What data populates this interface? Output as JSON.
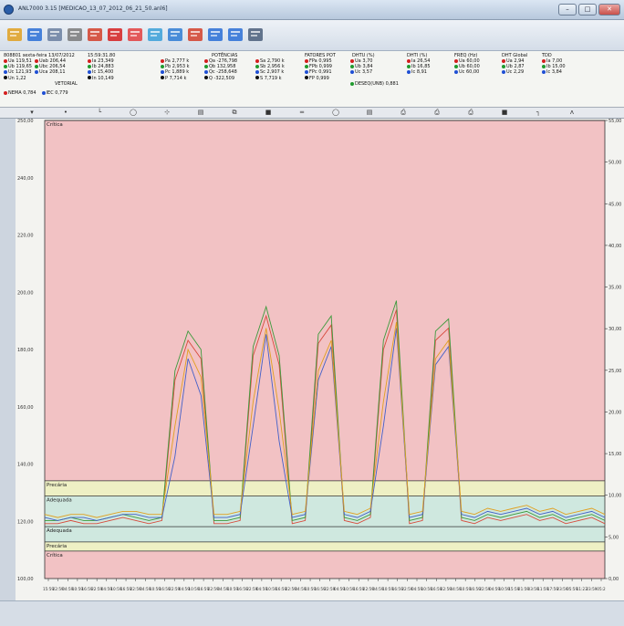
{
  "window": {
    "title": "ANL7000 3.15 [MEDICAO_13_07_2012_06_21_50.anl6]",
    "minimize_label": "–",
    "maximize_label": "□",
    "close_label": "✕"
  },
  "toolbar": {
    "buttons": [
      {
        "name": "open-icon",
        "color": "#e0a020"
      },
      {
        "name": "line-chart-icon",
        "color": "#2a6fd6"
      },
      {
        "name": "list-icon",
        "color": "#6a7fa0"
      },
      {
        "name": "table-icon",
        "color": "#7a7a7a"
      },
      {
        "name": "bar-chart-icon",
        "color": "#d43f2a"
      },
      {
        "name": "phasor-icon",
        "color": "#d62020"
      },
      {
        "name": "report-icon",
        "color": "#e34040"
      },
      {
        "name": "image-icon",
        "color": "#3aa0d8"
      },
      {
        "name": "energy-icon",
        "color": "#2f7cd3"
      },
      {
        "name": "harmonics-icon",
        "color": "#d43f2a"
      },
      {
        "name": "wave-icon",
        "color": "#2a6fd6"
      },
      {
        "name": "circle-icon",
        "color": "#2a6fd6"
      },
      {
        "name": "save-icon",
        "color": "#4a5e7a"
      }
    ]
  },
  "readouts": {
    "header": {
      "id": "808801",
      "day": "sexta-feira",
      "date": "13/07/2012",
      "time": "15:59:31.80"
    },
    "vectorial_label": "VETORIAL",
    "sections": {
      "potencias": "POTÊNCIAS",
      "fatores": "FATORES POT",
      "dhtu": "DHTU (%)",
      "dhti": "DHTI (%)",
      "freq": "FREQ (Hz)",
      "dht_global": "DHT Global",
      "tdd": "TDD"
    },
    "voltage": [
      {
        "label": "Ua",
        "value": "119,51",
        "color": "#d41e1e"
      },
      {
        "label": "Ub",
        "value": "119,65",
        "color": "#1f9a2e"
      },
      {
        "label": "Uc",
        "value": "121,93",
        "color": "#1e4fd4"
      },
      {
        "label": "Un",
        "value": "1,22",
        "color": "#111111"
      }
    ],
    "line_voltage": [
      {
        "label": "Uab",
        "value": "206,44",
        "color": "#d41e1e"
      },
      {
        "label": "Ubc",
        "value": "206,54",
        "color": "#1f9a2e"
      },
      {
        "label": "Uca",
        "value": "208,11",
        "color": "#1e4fd4"
      }
    ],
    "current": [
      {
        "label": "Ia",
        "value": "23,349",
        "color": "#d41e1e"
      },
      {
        "label": "Ib",
        "value": "24,883",
        "color": "#1f9a2e"
      },
      {
        "label": "Ic",
        "value": "15,400",
        "color": "#1e4fd4"
      },
      {
        "label": "In",
        "value": "10,149",
        "color": "#111111"
      }
    ],
    "active": [
      {
        "label": "Pa",
        "value": "2,777 k",
        "color": "#d41e1e"
      },
      {
        "label": "Pb",
        "value": "2,953 k",
        "color": "#1f9a2e"
      },
      {
        "label": "Pc",
        "value": "1,889 k",
        "color": "#1e4fd4"
      },
      {
        "label": "P",
        "value": "7,714 k",
        "color": "#111111"
      }
    ],
    "reactive": [
      {
        "label": "Qa",
        "value": "-276,798",
        "color": "#d41e1e"
      },
      {
        "label": "Qb",
        "value": "132,958",
        "color": "#1f9a2e"
      },
      {
        "label": "Qc",
        "value": "-258,648",
        "color": "#1e4fd4"
      },
      {
        "label": "Q",
        "value": "-322,509",
        "color": "#111111"
      }
    ],
    "apparent": [
      {
        "label": "Sa",
        "value": "2,790 k",
        "color": "#d41e1e"
      },
      {
        "label": "Sb",
        "value": "2,956 k",
        "color": "#1f9a2e"
      },
      {
        "label": "Sc",
        "value": "2,907 k",
        "color": "#1e4fd4"
      },
      {
        "label": "S",
        "value": "7,719 k",
        "color": "#111111"
      }
    ],
    "pf": [
      {
        "label": "FPa",
        "value": "0,995",
        "color": "#d41e1e"
      },
      {
        "label": "FPb",
        "value": "0,999",
        "color": "#1f9a2e"
      },
      {
        "label": "FPc",
        "value": "0,991",
        "color": "#1e4fd4"
      },
      {
        "label": "FP",
        "value": "0,999",
        "color": "#111111"
      }
    ],
    "dhtu": [
      {
        "label": "Ua",
        "value": "3,70",
        "color": "#d41e1e"
      },
      {
        "label": "Ub",
        "value": "3,84",
        "color": "#1f9a2e"
      },
      {
        "label": "Uc",
        "value": "3,57",
        "color": "#1e4fd4"
      }
    ],
    "dhti": [
      {
        "label": "Ia",
        "value": "26,54",
        "color": "#d41e1e"
      },
      {
        "label": "Ib",
        "value": "16,85",
        "color": "#1f9a2e"
      },
      {
        "label": "Ic",
        "value": "8,91",
        "color": "#1e4fd4"
      }
    ],
    "freq": [
      {
        "label": "Ua",
        "value": "60,00",
        "color": "#d41e1e"
      },
      {
        "label": "Ub",
        "value": "60,00",
        "color": "#1f9a2e"
      },
      {
        "label": "Uc",
        "value": "60,00",
        "color": "#1e4fd4"
      }
    ],
    "dht_global": [
      {
        "label": "Ua",
        "value": "2,94",
        "color": "#d41e1e"
      },
      {
        "label": "Ub",
        "value": "2,87",
        "color": "#1f9a2e"
      },
      {
        "label": "Uc",
        "value": "2,29",
        "color": "#1e4fd4"
      }
    ],
    "tdd": [
      {
        "label": "Ia",
        "value": "7,00",
        "color": "#d41e1e"
      },
      {
        "label": "Ib",
        "value": "15,00",
        "color": "#1f9a2e"
      },
      {
        "label": "Ic",
        "value": "3,84",
        "color": "#1e4fd4"
      }
    ],
    "desequilibrio": {
      "label": "DESEQ(UNB)",
      "value": "0,881",
      "color": "#1f9a2e"
    },
    "neutral_row": [
      {
        "label": "NEMA",
        "value": "0,784",
        "color": "#d41e1e"
      },
      {
        "label": "IEC",
        "value": "0,779",
        "color": "#1e4fd4"
      }
    ]
  },
  "cursor_tools": [
    "▾",
    "•",
    "└",
    "◯",
    "⊹",
    "▤",
    "⧉",
    "■",
    "═",
    "◯",
    "▤",
    "⎙",
    "⎙",
    "⎙",
    "■",
    "┐",
    "ʌ"
  ],
  "chart_data": {
    "type": "line",
    "y_left": {
      "min": 100,
      "max": 250,
      "ticks": [
        "250,00",
        "240,00",
        "220,00",
        "200,00",
        "180,00",
        "160,00",
        "140,00",
        "120,00",
        "100,00"
      ]
    },
    "y_right": {
      "ticks": [
        "55,00",
        "50,00",
        "45,00",
        "40,00",
        "35,00",
        "30,00",
        "25,00",
        "20,00",
        "15,00",
        "10,00",
        "5,00",
        "0,00"
      ]
    },
    "x_ticks": [
      "15:59",
      "22:59",
      "04:59",
      "10:59",
      "16:59",
      "22:59",
      "04:59",
      "10:59",
      "16:59",
      "22:59",
      "04:59",
      "10:59",
      "16:59",
      "22:59",
      "04:59",
      "10:59",
      "16:59",
      "22:59",
      "04:59",
      "10:59",
      "16:59",
      "22:59",
      "04:59",
      "10:59",
      "16:59",
      "22:59",
      "04:59",
      "10:59",
      "16:59",
      "22:59",
      "04:59",
      "10:59",
      "16:59",
      "22:59",
      "04:59",
      "10:59",
      "16:59",
      "22:59",
      "04:59",
      "10:59",
      "16:59",
      "22:59",
      "04:59",
      "10:59",
      "16:59",
      "22:59",
      "04:59",
      "10:59",
      "15:59",
      "21:59",
      "03:59",
      "11:59",
      "17:59",
      "23:59",
      "05:59",
      "11:23",
      "23:59",
      "05:2"
    ],
    "bands": [
      {
        "label": "Crítica",
        "from": 132,
        "to": 250,
        "color": "#f2c2c4"
      },
      {
        "label": "Precária",
        "from": 127,
        "to": 132,
        "color": "#eef0c4"
      },
      {
        "label": "Adequada",
        "from": 117,
        "to": 127,
        "color": "#cfe8df"
      },
      {
        "label": "Adequada",
        "from": 112,
        "to": 117,
        "color": "#cfe8df"
      },
      {
        "label": "Precária",
        "from": 109,
        "to": 112,
        "color": "#eef0c4"
      },
      {
        "label": "Crítica",
        "from": 100,
        "to": 109,
        "color": "#f2c2c4"
      }
    ],
    "series": [
      {
        "values": [
          118,
          118,
          119,
          118,
          118,
          119,
          120,
          119,
          118,
          119,
          165,
          178,
          172,
          118,
          118,
          119,
          173,
          186,
          170,
          118,
          119,
          177,
          183,
          119,
          118,
          120,
          175,
          188,
          118,
          119,
          178,
          182,
          119,
          118,
          120,
          119,
          120,
          121,
          119,
          120,
          118,
          119,
          120,
          118
        ],
        "color": "#d74a3c"
      },
      {
        "values": [
          119,
          119,
          120,
          119,
          119,
          120,
          121,
          120,
          119,
          120,
          168,
          181,
          175,
          119,
          119,
          120,
          176,
          189,
          173,
          119,
          120,
          180,
          186,
          120,
          119,
          121,
          178,
          191,
          119,
          120,
          181,
          185,
          120,
          119,
          121,
          120,
          121,
          122,
          120,
          121,
          119,
          120,
          121,
          119
        ],
        "color": "#3d9a3d"
      },
      {
        "values": [
          120,
          119,
          120,
          120,
          119,
          120,
          121,
          121,
          120,
          120,
          140,
          172,
          160,
          120,
          120,
          121,
          150,
          180,
          145,
          120,
          121,
          165,
          176,
          121,
          120,
          122,
          150,
          182,
          120,
          121,
          170,
          176,
          121,
          120,
          122,
          121,
          122,
          123,
          121,
          122,
          120,
          121,
          122,
          120
        ],
        "color": "#4360c8"
      },
      {
        "values": [
          121,
          120,
          121,
          121,
          120,
          121,
          122,
          122,
          121,
          121,
          150,
          175,
          166,
          121,
          121,
          122,
          158,
          182,
          155,
          121,
          122,
          168,
          178,
          122,
          121,
          123,
          158,
          184,
          121,
          122,
          172,
          178,
          122,
          121,
          123,
          122,
          123,
          124,
          122,
          123,
          121,
          122,
          123,
          121
        ],
        "color": "#e0a020"
      }
    ]
  }
}
